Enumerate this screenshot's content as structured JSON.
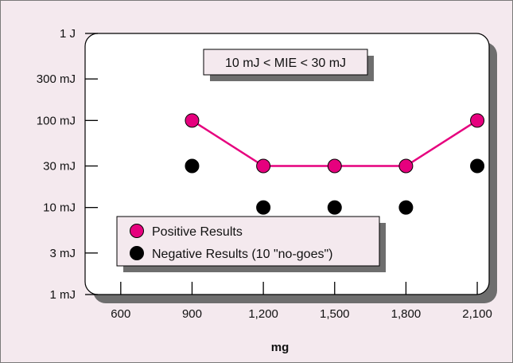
{
  "chart_data": {
    "type": "scatter",
    "x_ticks": [
      "600",
      "900",
      "1,200",
      "1,500",
      "1,800",
      "2,100"
    ],
    "x_tick_values": [
      600,
      900,
      1200,
      1500,
      1800,
      2100
    ],
    "y_ticks": [
      "1 mJ",
      "3 mJ",
      "10 mJ",
      "30 mJ",
      "100 mJ",
      "300 mJ",
      "1 J"
    ],
    "y_tick_values": [
      1,
      3,
      10,
      30,
      100,
      300,
      1000
    ],
    "y_scale": "log",
    "xlim": [
      450,
      2150
    ],
    "ylim": [
      1,
      1000
    ],
    "xlabel": "mg",
    "ylabel": "",
    "grid": false,
    "annotation": "10 mJ < MIE < 30 mJ",
    "legend_position": "bottom-left",
    "series": [
      {
        "name": "Positive Results",
        "color": "#e6007e",
        "marker": "circle",
        "connected": true,
        "x": [
          900,
          1200,
          1500,
          1800,
          2100
        ],
        "y": [
          100,
          30,
          30,
          30,
          100
        ]
      },
      {
        "name": "Negative Results (10 \"no-goes\")",
        "color": "#000000",
        "marker": "circle",
        "connected": false,
        "x": [
          900,
          1200,
          1500,
          1800,
          2100
        ],
        "y": [
          30,
          10,
          10,
          10,
          30
        ]
      }
    ]
  }
}
